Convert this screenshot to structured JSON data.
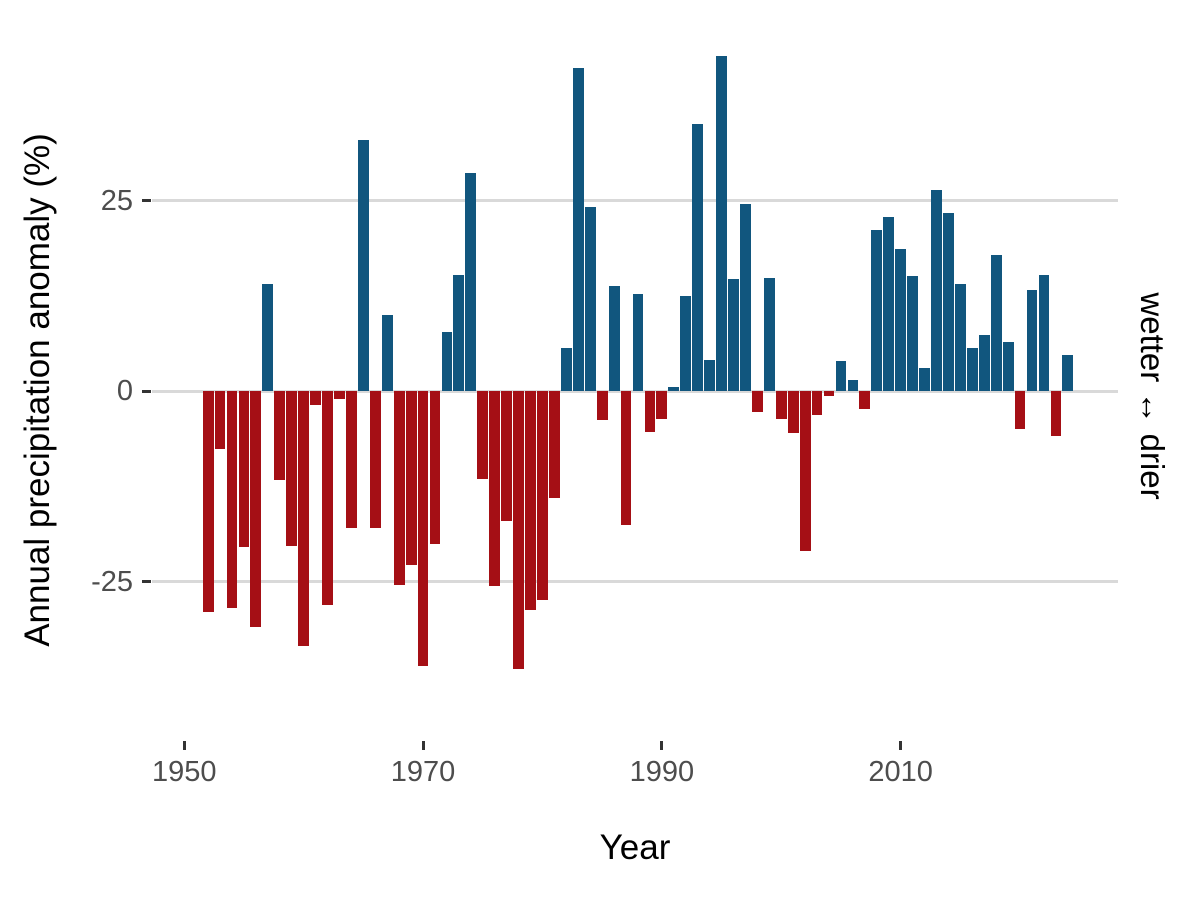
{
  "figure": {
    "y_axis_title": "Annual precipitation anomaly (%)",
    "x_axis_title": "Year",
    "right_label": "wetter ↔ drier",
    "colors": {
      "bar_positive": "#11567e",
      "bar_negative": "#a50f15",
      "gridline": "#d9d9d9",
      "tick_mark": "#333333",
      "tick_label": "#4d4d4d",
      "background": "#ffffff"
    }
  },
  "chart_data": {
    "type": "bar",
    "title": "",
    "xlabel": "Year",
    "ylabel": "Annual precipitation anomaly (%)",
    "right_annotation": "wetter ↔ drier",
    "grid": "horizontal-major-only",
    "legend": "none",
    "x_ticks": [
      1950,
      1970,
      1990,
      2010
    ],
    "y_ticks": [
      -25,
      0,
      25
    ],
    "xlim": [
      1947.3,
      2028.2
    ],
    "ylim": [
      -45.9,
      48.7
    ],
    "x": [
      1952,
      1953,
      1954,
      1955,
      1956,
      1957,
      1958,
      1959,
      1960,
      1961,
      1962,
      1963,
      1964,
      1965,
      1966,
      1967,
      1968,
      1969,
      1970,
      1971,
      1972,
      1973,
      1974,
      1975,
      1976,
      1977,
      1978,
      1979,
      1980,
      1981,
      1982,
      1983,
      1984,
      1985,
      1986,
      1987,
      1988,
      1989,
      1990,
      1991,
      1992,
      1993,
      1994,
      1995,
      1996,
      1997,
      1998,
      1999,
      2000,
      2001,
      2002,
      2003,
      2004,
      2005,
      2006,
      2007,
      2008,
      2009,
      2010,
      2011,
      2012,
      2013,
      2014,
      2015,
      2016,
      2017,
      2018,
      2019,
      2020,
      2021,
      2022,
      2023,
      2024
    ],
    "values": [
      -29,
      -7.6,
      -28.5,
      -20.5,
      -31,
      14,
      -11.7,
      -20.3,
      -33.5,
      -1.8,
      -28,
      -1,
      -18,
      33,
      -18,
      10,
      -25.4,
      -22.8,
      -36,
      -20,
      7.7,
      15.2,
      28.6,
      -11.5,
      -25.5,
      -17,
      -36.4,
      -28.7,
      -27.4,
      -14,
      5.6,
      42.4,
      24.2,
      -3.8,
      13.8,
      -17.5,
      12.7,
      -5.3,
      -3.7,
      0.6,
      12.5,
      35,
      4.1,
      44,
      14.7,
      24.5,
      -2.7,
      14.9,
      -3.6,
      -5.5,
      -21,
      -3.1,
      -0.6,
      4,
      1.5,
      -2.3,
      21.2,
      22.9,
      18.7,
      15.1,
      3,
      26.4,
      23.4,
      14,
      5.7,
      7.4,
      17.9,
      6.4,
      -4.9,
      13.3,
      15.3,
      -5.9,
      4.8
    ],
    "positive_color": "#11567e",
    "negative_color": "#a50f15"
  }
}
